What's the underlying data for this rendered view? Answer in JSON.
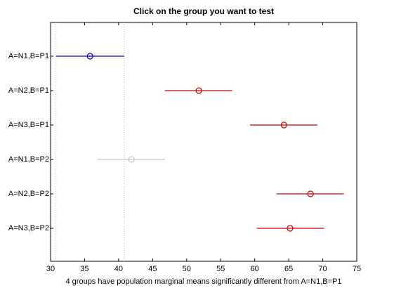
{
  "chart_data": {
    "type": "interval",
    "title": "Click on the group you want to test",
    "xlabel": "4 groups have population marginal means significantly different from A=N1,B=P1",
    "categories": [
      "A=N1,B=P1",
      "A=N2,B=P1",
      "A=N3,B=P1",
      "A=N1,B=P2",
      "A=N2,B=P2",
      "A=N3,B=P2"
    ],
    "values": [
      35.8,
      51.8,
      64.3,
      41.9,
      68.2,
      65.2
    ],
    "lower": [
      30.8,
      46.8,
      59.3,
      36.9,
      63.2,
      60.3
    ],
    "upper": [
      40.8,
      56.7,
      69.2,
      46.8,
      73.1,
      70.2
    ],
    "colors": [
      "#0000aa",
      "#cc0000",
      "#cc0000",
      "#c8c8c8",
      "#cc0000",
      "#cc0000"
    ],
    "selected": 0,
    "xlim": [
      30,
      75
    ],
    "xticks": [
      30,
      35,
      40,
      45,
      50,
      55,
      60,
      65,
      70,
      75
    ]
  }
}
